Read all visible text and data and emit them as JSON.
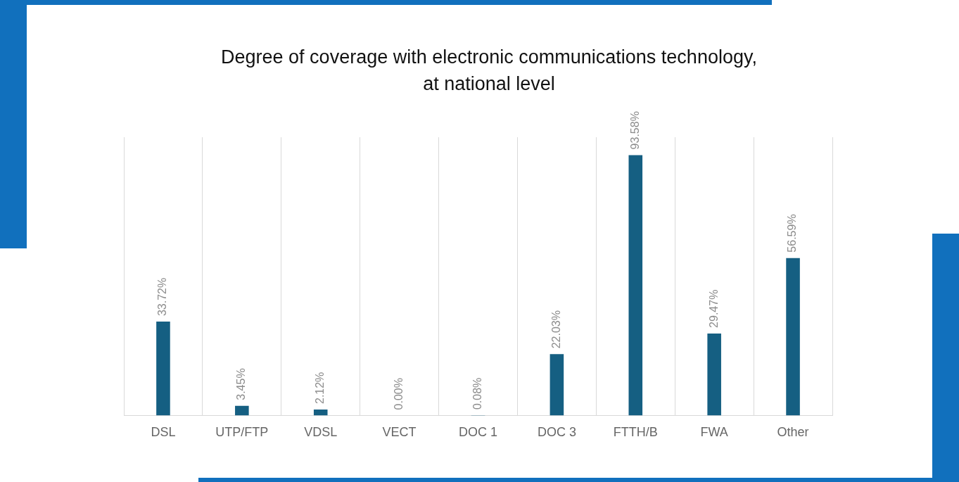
{
  "chart_data": {
    "type": "bar",
    "title": "Degree of coverage with electronic communications technology, at national level",
    "categories": [
      "DSL",
      "UTP/FTP",
      "VDSL",
      "VECT",
      "DOC 1",
      "DOC 3",
      "FTTH/B",
      "FWA",
      "Other"
    ],
    "values": [
      33.72,
      3.45,
      2.12,
      0.0,
      0.08,
      22.03,
      93.58,
      29.47,
      56.59
    ],
    "value_labels": [
      "33.72%",
      "3.45%",
      "2.12%",
      "0.00%",
      "0.08%",
      "22.03%",
      "93.58%",
      "29.47%",
      "56.59%"
    ],
    "color": "#155f82",
    "ylim": [
      0,
      100
    ],
    "grid": "x",
    "tick_labels": "x",
    "legend": false
  }
}
